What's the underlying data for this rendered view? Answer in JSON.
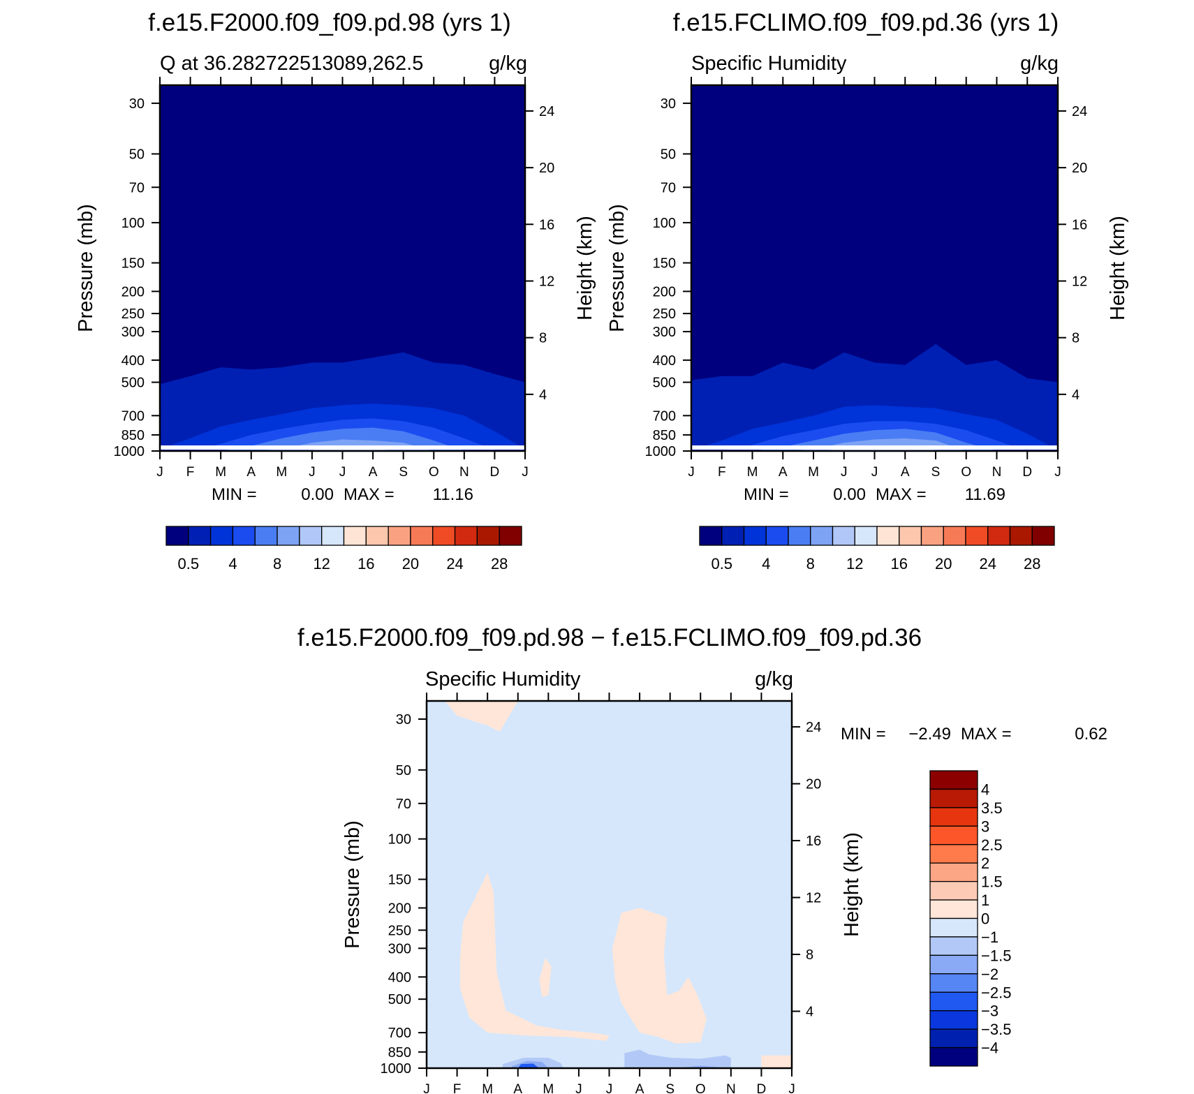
{
  "chart_data": [
    {
      "type": "heatmap",
      "panel": "top-left",
      "title": "f.e15.F2000.f09_f09.pd.98 (yrs 1)",
      "left_string": "Q at 36.282722513089,262.5",
      "right_string": "g/kg",
      "ylabel": "Pressure (mb)",
      "ylabel_right": "Height (km)",
      "x_ticks": [
        "J",
        "F",
        "M",
        "A",
        "M",
        "J",
        "J",
        "A",
        "S",
        "O",
        "N",
        "D",
        "J"
      ],
      "p_ticks": [
        30,
        50,
        70,
        100,
        150,
        200,
        250,
        300,
        400,
        500,
        700,
        850,
        1000
      ],
      "km_ticks": [
        4,
        8,
        12,
        16,
        20,
        24
      ],
      "ylim_mb": [
        1000,
        25
      ],
      "stats": {
        "min_label": "MIN =",
        "min": "0.00",
        "max_label": "MAX =",
        "max": "11.16"
      },
      "contour_bands_g_per_kg": [
        {
          "level": 0.5,
          "pressure_mb": [
            510,
            470,
            430,
            440,
            430,
            410,
            410,
            390,
            370,
            410,
            420,
            460,
            500
          ]
        },
        {
          "level": 2,
          "pressure_mb": [
            980,
            880,
            780,
            730,
            690,
            650,
            630,
            620,
            630,
            650,
            700,
            820,
            980
          ]
        },
        {
          "level": 4,
          "pressure_mb": [
            1000,
            1000,
            930,
            850,
            800,
            760,
            730,
            720,
            740,
            790,
            880,
            990,
            1000
          ]
        },
        {
          "level": 6,
          "pressure_mb": [
            1000,
            1000,
            1000,
            950,
            880,
            830,
            800,
            790,
            820,
            900,
            1000,
            1000,
            1000
          ]
        },
        {
          "level": 8,
          "pressure_mb": [
            1000,
            1000,
            1000,
            1000,
            980,
            920,
            890,
            900,
            920,
            1000,
            1000,
            1000,
            1000
          ]
        },
        {
          "level": 10,
          "pressure_mb": [
            1000,
            1000,
            1000,
            1000,
            1000,
            990,
            960,
            980,
            1000,
            1000,
            1000,
            1000,
            1000
          ]
        }
      ],
      "colorbar": {
        "orientation": "horizontal",
        "labels": [
          "0.5",
          "4",
          "8",
          "12",
          "16",
          "20",
          "24",
          "28"
        ]
      }
    },
    {
      "type": "heatmap",
      "panel": "top-right",
      "title": "f.e15.FCLIMO.f09_f09.pd.36 (yrs 1)",
      "left_string": "Specific Humidity",
      "right_string": "g/kg",
      "ylabel": "Pressure (mb)",
      "ylabel_right": "Height (km)",
      "x_ticks": [
        "J",
        "F",
        "M",
        "A",
        "M",
        "J",
        "J",
        "A",
        "S",
        "O",
        "N",
        "D",
        "J"
      ],
      "p_ticks": [
        30,
        50,
        70,
        100,
        150,
        200,
        250,
        300,
        400,
        500,
        700,
        850,
        1000
      ],
      "km_ticks": [
        4,
        8,
        12,
        16,
        20,
        24
      ],
      "ylim_mb": [
        1000,
        25
      ],
      "stats": {
        "min_label": "MIN =",
        "min": "0.00",
        "max_label": "MAX =",
        "max": "11.69"
      },
      "contour_bands_g_per_kg": [
        {
          "level": 0.5,
          "pressure_mb": [
            490,
            470,
            470,
            410,
            440,
            370,
            410,
            420,
            340,
            420,
            400,
            480,
            500
          ]
        },
        {
          "level": 2,
          "pressure_mb": [
            990,
            900,
            800,
            750,
            700,
            640,
            630,
            640,
            650,
            690,
            730,
            840,
            990
          ]
        },
        {
          "level": 4,
          "pressure_mb": [
            1000,
            1000,
            940,
            860,
            810,
            760,
            740,
            740,
            760,
            810,
            900,
            1000,
            1000
          ]
        },
        {
          "level": 6,
          "pressure_mb": [
            1000,
            1000,
            1000,
            960,
            900,
            840,
            810,
            800,
            830,
            920,
            1000,
            1000,
            1000
          ]
        },
        {
          "level": 8,
          "pressure_mb": [
            1000,
            1000,
            1000,
            1000,
            980,
            920,
            890,
            880,
            900,
            1000,
            1000,
            1000,
            1000
          ]
        },
        {
          "level": 10,
          "pressure_mb": [
            1000,
            1000,
            1000,
            1000,
            1000,
            980,
            960,
            960,
            990,
            1000,
            1000,
            1000,
            1000
          ]
        }
      ],
      "colorbar": {
        "orientation": "horizontal",
        "labels": [
          "0.5",
          "4",
          "8",
          "12",
          "16",
          "20",
          "24",
          "28"
        ]
      }
    },
    {
      "type": "heatmap",
      "panel": "bottom",
      "title": "f.e15.F2000.f09_f09.pd.98 − f.e15.FCLIMO.f09_f09.pd.36",
      "left_string": "Specific Humidity",
      "right_string": "g/kg",
      "ylabel": "Pressure (mb)",
      "ylabel_right": "Height (km)",
      "x_ticks": [
        "J",
        "F",
        "M",
        "A",
        "M",
        "J",
        "J",
        "A",
        "S",
        "O",
        "N",
        "D",
        "J"
      ],
      "p_ticks": [
        30,
        50,
        70,
        100,
        150,
        200,
        250,
        300,
        400,
        500,
        700,
        850,
        1000
      ],
      "km_ticks": [
        4,
        8,
        12,
        16,
        20,
        24
      ],
      "ylim_mb": [
        1000,
        25
      ],
      "background_band": "-1 to 0",
      "stats": {
        "min_label": "MIN =",
        "min": "−2.49",
        "max_label": "MAX =",
        "max": "0.62"
      },
      "positive_regions_0_to_1": [
        {
          "name": "upper-stratosphere",
          "points_month_mb": [
            [
              0.6,
              25
            ],
            [
              3.0,
              25
            ],
            [
              2.4,
              34
            ],
            [
              2.0,
              32
            ],
            [
              1.0,
              29
            ]
          ]
        },
        {
          "name": "feb-mar-tongue",
          "points_month_mb": [
            [
              1.1,
              330
            ],
            [
              1.2,
              230
            ],
            [
              1.6,
              180
            ],
            [
              2.0,
              140
            ],
            [
              2.2,
              170
            ],
            [
              2.3,
              380
            ],
            [
              2.6,
              560
            ],
            [
              3.6,
              650
            ],
            [
              4.4,
              680
            ],
            [
              5.4,
              700
            ],
            [
              6.0,
              720
            ],
            [
              5.9,
              760
            ],
            [
              4.6,
              730
            ],
            [
              3.2,
              720
            ],
            [
              2.0,
              700
            ],
            [
              1.4,
              600
            ],
            [
              1.1,
              450
            ]
          ]
        },
        {
          "name": "apr-may-blob",
          "points_month_mb": [
            [
              3.7,
              410
            ],
            [
              3.9,
              330
            ],
            [
              4.1,
              360
            ],
            [
              4.0,
              480
            ],
            [
              3.8,
              490
            ]
          ]
        },
        {
          "name": "jul-oct-column",
          "points_month_mb": [
            [
              6.1,
              300
            ],
            [
              6.4,
              210
            ],
            [
              7.0,
              200
            ],
            [
              7.9,
              220
            ],
            [
              7.8,
              320
            ],
            [
              7.9,
              480
            ],
            [
              8.3,
              460
            ],
            [
              8.6,
              400
            ],
            [
              8.9,
              480
            ],
            [
              9.2,
              610
            ],
            [
              9.0,
              770
            ],
            [
              8.2,
              780
            ],
            [
              7.6,
              730
            ],
            [
              7.0,
              700
            ],
            [
              6.4,
              520
            ],
            [
              6.2,
              420
            ]
          ]
        },
        {
          "name": "late-dec-surface",
          "points_month_mb": [
            [
              11.0,
              880
            ],
            [
              12.0,
              880
            ],
            [
              12.0,
              1000
            ],
            [
              11.0,
              1000
            ]
          ]
        }
      ],
      "negative_regions": [
        {
          "level": "-1 to -1.5",
          "points_month_mb": [
            [
              2.5,
              960
            ],
            [
              3.2,
              900
            ],
            [
              4.0,
              900
            ],
            [
              4.4,
              950
            ],
            [
              4.5,
              1000
            ],
            [
              2.5,
              1000
            ]
          ]
        },
        {
          "level": "-1.5 to -2",
          "points_month_mb": [
            [
              2.8,
              980
            ],
            [
              3.3,
              930
            ],
            [
              3.8,
              940
            ],
            [
              4.0,
              1000
            ],
            [
              2.8,
              1000
            ]
          ]
        },
        {
          "level": "-2 to -2.5",
          "points_month_mb": [
            [
              3.0,
              1000
            ],
            [
              3.1,
              960
            ],
            [
              3.5,
              955
            ],
            [
              3.7,
              1000
            ]
          ]
        },
        {
          "level": "-1 to -1.5",
          "points_month_mb": [
            [
              6.5,
              860
            ],
            [
              7.0,
              830
            ],
            [
              7.3,
              870
            ],
            [
              8.0,
              900
            ],
            [
              9.0,
              910
            ],
            [
              9.8,
              880
            ],
            [
              10.0,
              900
            ],
            [
              10.0,
              1000
            ],
            [
              6.5,
              1000
            ]
          ]
        },
        {
          "level": "-1.5 to -2",
          "points_month_mb": [
            [
              8.5,
              990
            ],
            [
              9.0,
              975
            ],
            [
              9.6,
              990
            ],
            [
              9.6,
              1000
            ],
            [
              8.5,
              1000
            ]
          ]
        }
      ],
      "colorbar": {
        "orientation": "vertical",
        "labels": [
          "4",
          "3.5",
          "3",
          "2.5",
          "2",
          "1.5",
          "1",
          "0",
          "−1",
          "−1.5",
          "−2",
          "−2.5",
          "−3",
          "−3.5",
          "−4"
        ]
      }
    }
  ],
  "palettes": {
    "humidity": [
      "#00007f",
      "#0020b4",
      "#0033d8",
      "#1a4cf0",
      "#4a7df4",
      "#7da3f5",
      "#b0c7f7",
      "#d6e6fb",
      "#fde4d4",
      "#fcc7ac",
      "#f9a282",
      "#f77a56",
      "#ef4c25",
      "#d12a10",
      "#aa1800",
      "#800000"
    ],
    "difference": [
      "#8c0000",
      "#b81a06",
      "#e7360f",
      "#fd5628",
      "#ff7b4b",
      "#fca686",
      "#fdcbb5",
      "#ffe6d8",
      "#d6e7fb",
      "#b2c9f7",
      "#8aaaf5",
      "#5685f4",
      "#2059f2",
      "#0a38de",
      "#0021b0",
      "#00007f"
    ]
  }
}
